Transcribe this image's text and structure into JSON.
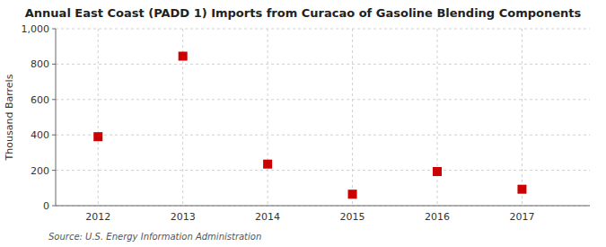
{
  "chart_data": {
    "type": "scatter",
    "title": "Annual East Coast (PADD 1) Imports from Curacao of Gasoline Blending Components",
    "ylabel": "Thousand Barrels",
    "source": "Source: U.S. Energy Information Administration",
    "x": [
      2012,
      2013,
      2014,
      2015,
      2016,
      2017
    ],
    "values": [
      390,
      845,
      235,
      65,
      193,
      93
    ],
    "xlim": [
      2011.5,
      2017.8
    ],
    "xticks": [
      2012,
      2013,
      2014,
      2015,
      2016,
      2017
    ],
    "ylim": [
      0,
      1000
    ],
    "yticks": [
      0,
      200,
      400,
      600,
      800,
      {
        "value": 1000,
        "label": "1,000"
      }
    ],
    "color": "#cc0000",
    "marker": "square",
    "grid": true
  }
}
